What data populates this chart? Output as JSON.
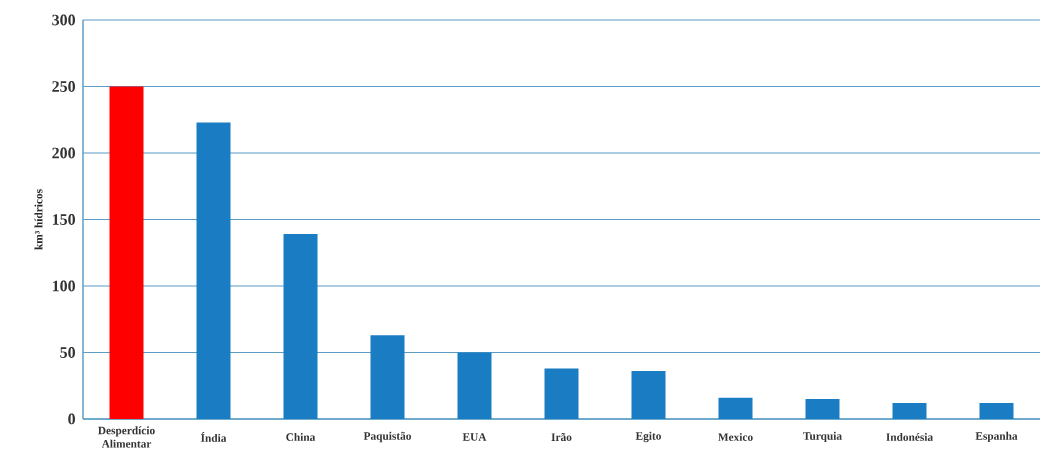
{
  "chart_data": {
    "type": "bar",
    "ylabel": "km³ hídricos",
    "categories": [
      "Desperdício Alimentar",
      "Índia",
      "China",
      "Paquistão",
      "EUA",
      "Irão",
      "Egito",
      "Mexico",
      "Turquia",
      "Indonésia",
      "Espanha"
    ],
    "values": [
      250,
      223,
      139,
      63,
      50,
      38,
      36,
      16,
      15,
      12,
      12
    ],
    "colors": [
      "#ff0000",
      "#1a7dc4",
      "#1a7dc4",
      "#1a7dc4",
      "#1a7dc4",
      "#1a7dc4",
      "#1a7dc4",
      "#1a7dc4",
      "#1a7dc4",
      "#1a7dc4",
      "#1a7dc4"
    ],
    "ylim": [
      0,
      300
    ],
    "yticks": [
      0,
      50,
      100,
      150,
      200,
      250,
      300
    ],
    "grid": "y"
  }
}
